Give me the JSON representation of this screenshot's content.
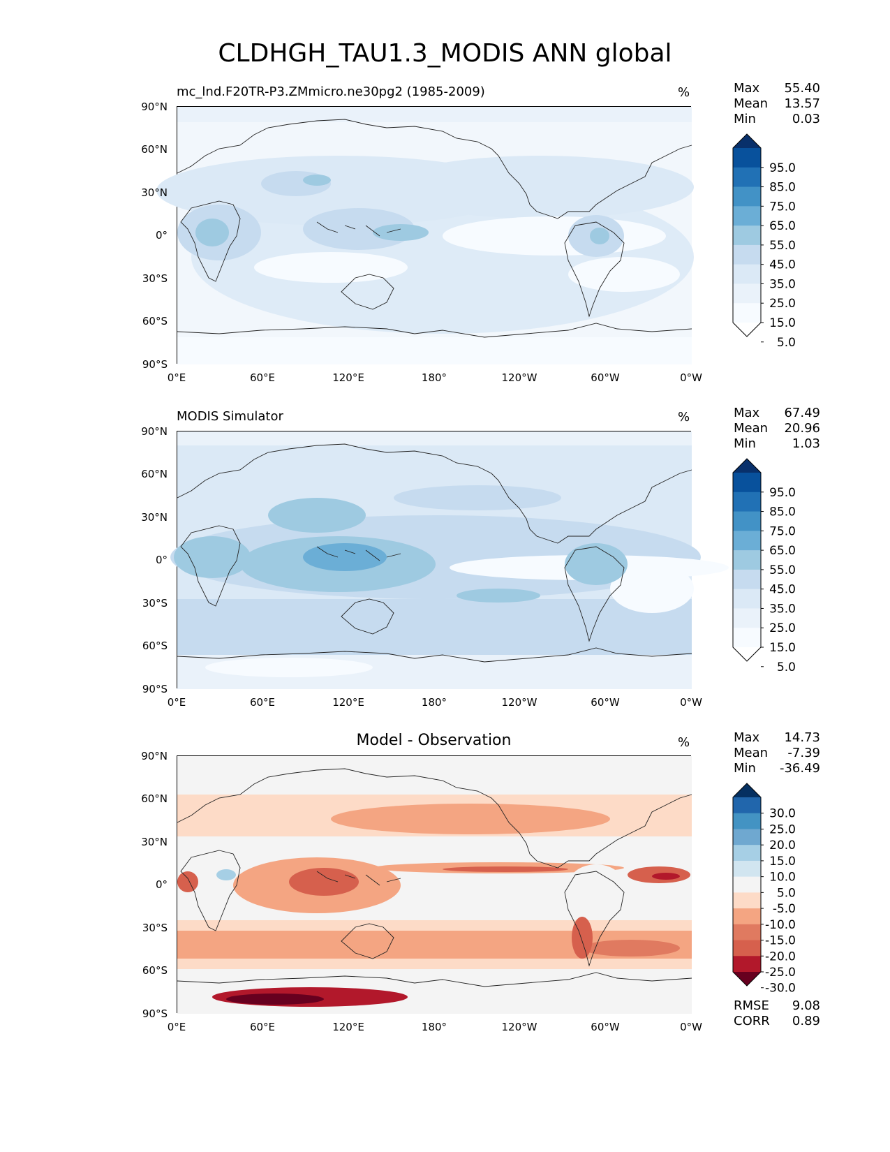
{
  "figure": {
    "title": "CLDHGH_TAU1.3_MODIS ANN global"
  },
  "axes": {
    "lat_ticks": [
      "90°N",
      "60°N",
      "30°N",
      "0°",
      "30°S",
      "60°S",
      "90°S"
    ],
    "lon_ticks": [
      "0°E",
      "60°E",
      "120°E",
      "180°",
      "120°W",
      "60°W",
      "0°W"
    ]
  },
  "panels": [
    {
      "title": "mc_lnd.F20TR-P3.ZMmicro.ne30pg2 (1985-2009)",
      "unit": "%",
      "stats": [
        {
          "label": "Max",
          "value": "55.40"
        },
        {
          "label": "Mean",
          "value": "13.57"
        },
        {
          "label": "Min",
          "value": "0.03"
        }
      ],
      "colorbar": {
        "levels": [
          "95.0",
          "85.0",
          "75.0",
          "65.0",
          "55.0",
          "45.0",
          "35.0",
          "25.0",
          "15.0",
          "5.0"
        ],
        "colors": [
          "#08306b",
          "#08519c",
          "#2171b5",
          "#4292c6",
          "#6baed6",
          "#9ecae1",
          "#c6dbef",
          "#dbe9f6",
          "#eaf2fa",
          "#f7fbff",
          "#ffffff"
        ]
      }
    },
    {
      "title": "MODIS Simulator",
      "unit": "%",
      "stats": [
        {
          "label": "Max",
          "value": "67.49"
        },
        {
          "label": "Mean",
          "value": "20.96"
        },
        {
          "label": "Min",
          "value": "1.03"
        }
      ],
      "colorbar": {
        "levels": [
          "95.0",
          "85.0",
          "75.0",
          "65.0",
          "55.0",
          "45.0",
          "35.0",
          "25.0",
          "15.0",
          "5.0"
        ],
        "colors": [
          "#08306b",
          "#08519c",
          "#2171b5",
          "#4292c6",
          "#6baed6",
          "#9ecae1",
          "#c6dbef",
          "#dbe9f6",
          "#eaf2fa",
          "#f7fbff",
          "#ffffff"
        ]
      }
    },
    {
      "title": "Model - Observation",
      "unit": "%",
      "stats": [
        {
          "label": "Max",
          "value": "14.73"
        },
        {
          "label": "Mean",
          "value": "-7.39"
        },
        {
          "label": "Min",
          "value": "-36.49"
        }
      ],
      "extra_stats": [
        {
          "label": "RMSE",
          "value": "9.08"
        },
        {
          "label": "CORR",
          "value": "0.89"
        }
      ],
      "colorbar": {
        "levels": [
          "30.0",
          "25.0",
          "20.0",
          "15.0",
          "10.0",
          "5.0",
          "-5.0",
          "-10.0",
          "-15.0",
          "-20.0",
          "-25.0",
          "-30.0"
        ],
        "colors": [
          "#053061",
          "#2166ac",
          "#4393c3",
          "#6fa8d0",
          "#a6cfe5",
          "#d1e5f0",
          "#f4f4f4",
          "#fddbc7",
          "#f4a582",
          "#e07a60",
          "#d6604d",
          "#b2182b",
          "#67001f"
        ]
      }
    }
  ]
}
